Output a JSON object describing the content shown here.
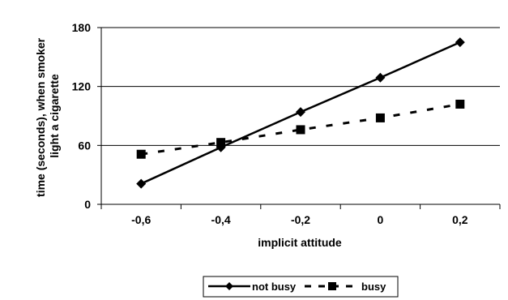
{
  "chart_data": {
    "type": "line",
    "title": "",
    "xlabel": "implicit attitude",
    "ylabel_lines": [
      "time (seconds), when smoker",
      "light a cigarette"
    ],
    "x": [
      -0.6,
      -0.4,
      -0.2,
      0,
      0.2
    ],
    "x_tick_labels": [
      "-0,6",
      "-0,4",
      "-0,2",
      "0",
      "0,2"
    ],
    "y_ticks": [
      0,
      60,
      120,
      180
    ],
    "y_tick_labels": [
      "0",
      "60",
      "120",
      "180"
    ],
    "ylim": [
      0,
      180
    ],
    "grid": "horizontal",
    "legend_position": "bottom",
    "series": [
      {
        "name": "not busy",
        "values": [
          21,
          58,
          94,
          129,
          165
        ],
        "line_style": "solid",
        "marker": "diamond",
        "color": "#000000"
      },
      {
        "name": "busy",
        "values": [
          51,
          63,
          76,
          88,
          102
        ],
        "line_style": "dashed",
        "marker": "square",
        "color": "#000000"
      }
    ]
  }
}
